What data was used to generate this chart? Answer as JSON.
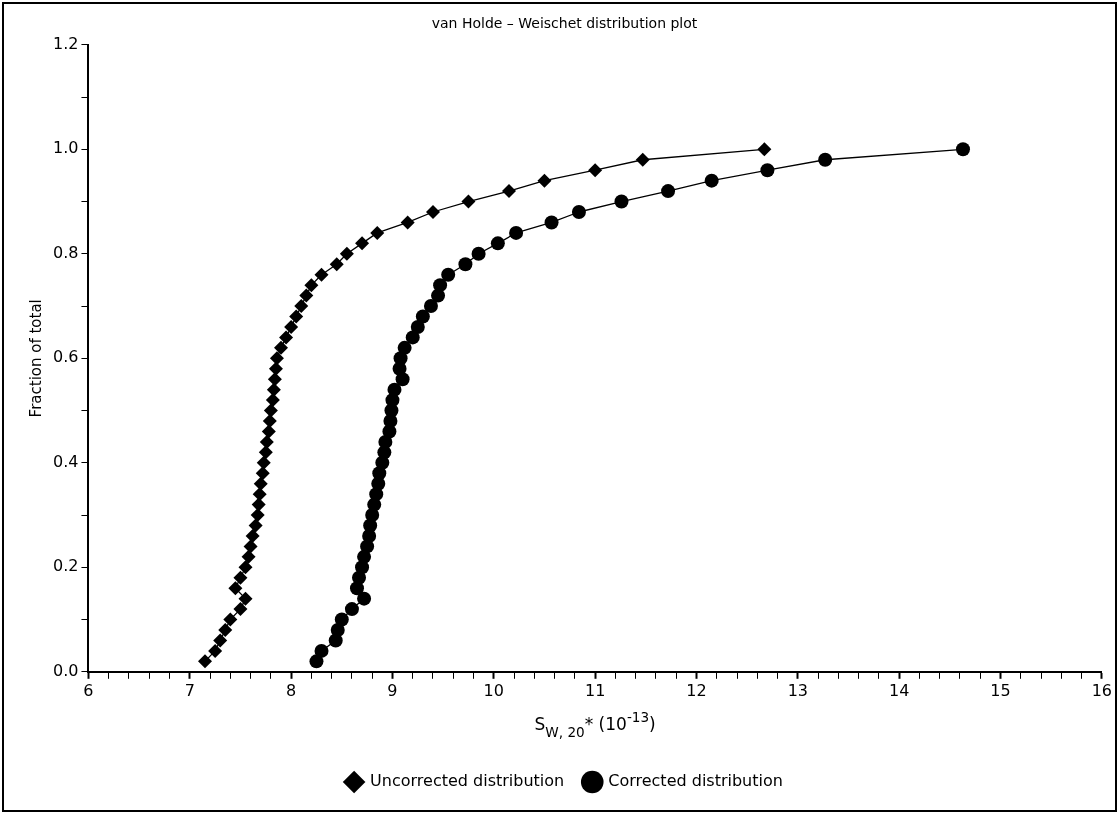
{
  "chart_data": {
    "type": "line",
    "title": "van Holde – Weischet distribution plot",
    "xlabel": "S$_{W, 20}$* (10$^{-13}$)",
    "ylabel": "Fraction of total",
    "xlim": [
      6,
      16
    ],
    "xticks": [
      6,
      {
        "value": 6.2,
        "label": null
      },
      {
        "value": 6.4,
        "label": null
      },
      {
        "value": 6.6,
        "label": null
      },
      {
        "value": 6.8,
        "label": null
      },
      7,
      {
        "value": 7.2,
        "label": null
      },
      {
        "value": 7.4,
        "label": null
      },
      {
        "value": 7.6,
        "label": null
      },
      {
        "value": 7.8,
        "label": null
      },
      8,
      {
        "value": 8.2,
        "label": null
      },
      {
        "value": 8.4,
        "label": null
      },
      {
        "value": 8.6,
        "label": null
      },
      {
        "value": 8.8,
        "label": null
      },
      9,
      {
        "value": 9.2,
        "label": null
      },
      {
        "value": 9.4,
        "label": null
      },
      {
        "value": 9.6,
        "label": null
      },
      {
        "value": 9.8,
        "label": null
      },
      10,
      {
        "value": 10.2,
        "label": null
      },
      {
        "value": 10.4,
        "label": null
      },
      {
        "value": 10.6,
        "label": null
      },
      {
        "value": 10.8,
        "label": null
      },
      11,
      {
        "value": 11.2,
        "label": null
      },
      {
        "value": 11.4,
        "label": null
      },
      {
        "value": 11.6,
        "label": null
      },
      {
        "value": 11.8,
        "label": null
      },
      12,
      {
        "value": 12.2,
        "label": null
      },
      {
        "value": 12.4,
        "label": null
      },
      {
        "value": 12.6,
        "label": null
      },
      {
        "value": 12.8,
        "label": null
      },
      13,
      {
        "value": 13.2,
        "label": null
      },
      {
        "value": 13.4,
        "label": null
      },
      {
        "value": 13.6,
        "label": null
      },
      {
        "value": 13.8,
        "label": null
      },
      14,
      {
        "value": 14.2,
        "label": null
      },
      {
        "value": 14.4,
        "label": null
      },
      {
        "value": 14.6,
        "label": null
      },
      {
        "value": 14.8,
        "label": null
      },
      15,
      {
        "value": 15.2,
        "label": null
      },
      {
        "value": 15.4,
        "label": null
      },
      {
        "value": 15.6,
        "label": null
      },
      {
        "value": 15.8,
        "label": null
      },
      16
    ],
    "ylim": [
      0,
      1.2
    ],
    "yticks": [
      {
        "value": 0,
        "label": "0.0"
      },
      {
        "value": 0.1,
        "label": null
      },
      {
        "value": 0.2,
        "label": "0.2"
      },
      {
        "value": 0.3,
        "label": null
      },
      {
        "value": 0.4,
        "label": "0.4"
      },
      {
        "value": 0.5,
        "label": null
      },
      {
        "value": 0.6,
        "label": "0.6"
      },
      {
        "value": 0.7,
        "label": null
      },
      {
        "value": 0.8,
        "label": "0.8"
      },
      {
        "value": 0.9,
        "label": null
      },
      {
        "value": 1.0,
        "label": "1.0"
      },
      {
        "value": 1.1,
        "label": null
      },
      {
        "value": 1.2,
        "label": "1.2"
      }
    ],
    "grid": false,
    "legend": "bottom",
    "line_style": "solid",
    "series": [
      {
        "name": "Uncorrected distribution",
        "color": "#000000",
        "marker": "diamond",
        "x": [
          7.15,
          7.25,
          7.3,
          7.35,
          7.4,
          7.5,
          7.55,
          7.45,
          7.5,
          7.55,
          7.58,
          7.6,
          7.62,
          7.65,
          7.67,
          7.68,
          7.69,
          7.7,
          7.72,
          7.73,
          7.75,
          7.76,
          7.78,
          7.79,
          7.8,
          7.82,
          7.83,
          7.84,
          7.85,
          7.86,
          7.9,
          7.95,
          8.0,
          8.05,
          8.1,
          8.15,
          8.2,
          8.3,
          8.45,
          8.55,
          8.7,
          8.85,
          9.15,
          9.4,
          9.75,
          10.15,
          10.5,
          11.0,
          11.47,
          12.67
        ],
        "values": [
          0.02,
          0.04,
          0.06,
          0.08,
          0.1,
          0.12,
          0.14,
          0.16,
          0.18,
          0.2,
          0.22,
          0.24,
          0.26,
          0.28,
          0.3,
          0.32,
          0.34,
          0.36,
          0.38,
          0.4,
          0.42,
          0.44,
          0.46,
          0.48,
          0.5,
          0.52,
          0.54,
          0.56,
          0.58,
          0.6,
          0.62,
          0.64,
          0.66,
          0.68,
          0.7,
          0.72,
          0.74,
          0.76,
          0.78,
          0.8,
          0.82,
          0.84,
          0.86,
          0.88,
          0.9,
          0.92,
          0.94,
          0.96,
          0.98,
          1.0
        ]
      },
      {
        "name": "Corrected distribution",
        "color": "#000000",
        "marker": "circle",
        "x": [
          8.25,
          8.3,
          8.44,
          8.46,
          8.5,
          8.6,
          8.72,
          8.65,
          8.67,
          8.7,
          8.72,
          8.75,
          8.77,
          8.78,
          8.8,
          8.82,
          8.84,
          8.86,
          8.87,
          8.9,
          8.92,
          8.93,
          8.97,
          8.98,
          8.99,
          9.0,
          9.02,
          9.1,
          9.07,
          9.08,
          9.12,
          9.2,
          9.25,
          9.3,
          9.38,
          9.45,
          9.47,
          9.55,
          9.72,
          9.85,
          10.04,
          10.22,
          10.57,
          10.84,
          11.26,
          11.72,
          12.15,
          12.7,
          13.27,
          14.63
        ],
        "values": [
          0.02,
          0.04,
          0.06,
          0.08,
          0.1,
          0.12,
          0.14,
          0.16,
          0.18,
          0.2,
          0.22,
          0.24,
          0.26,
          0.28,
          0.3,
          0.32,
          0.34,
          0.36,
          0.38,
          0.4,
          0.42,
          0.44,
          0.46,
          0.48,
          0.5,
          0.52,
          0.54,
          0.56,
          0.58,
          0.6,
          0.62,
          0.64,
          0.66,
          0.68,
          0.7,
          0.72,
          0.74,
          0.76,
          0.78,
          0.8,
          0.82,
          0.84,
          0.86,
          0.88,
          0.9,
          0.92,
          0.94,
          0.96,
          0.98,
          1.0
        ]
      }
    ]
  }
}
